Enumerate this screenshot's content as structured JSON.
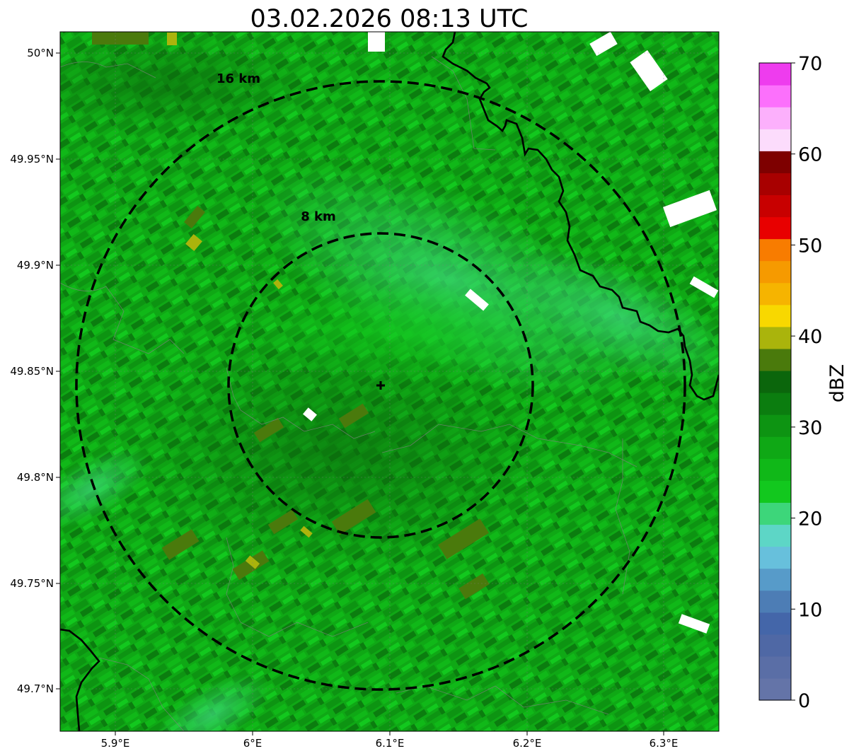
{
  "title": "03.02.2026 08:13 UTC",
  "map": {
    "lon_ticks": [
      {
        "value": 5.9,
        "label": "5.9°E"
      },
      {
        "value": 6.0,
        "label": "6°E"
      },
      {
        "value": 6.1,
        "label": "6.1°E"
      },
      {
        "value": 6.2,
        "label": "6.2°E"
      },
      {
        "value": 6.3,
        "label": "6.3°E"
      }
    ],
    "lat_ticks": [
      {
        "value": 50.0,
        "label": "50°N"
      },
      {
        "value": 49.95,
        "label": "49.95°N"
      },
      {
        "value": 49.9,
        "label": "49.9°N"
      },
      {
        "value": 49.85,
        "label": "49.85°N"
      },
      {
        "value": 49.8,
        "label": "49.8°N"
      },
      {
        "value": 49.75,
        "label": "49.75°N"
      },
      {
        "value": 49.7,
        "label": "49.7°N"
      }
    ],
    "lon_range": [
      5.86,
      6.34
    ],
    "lat_range": [
      49.68,
      50.01
    ],
    "radar_site": {
      "lon": 6.095,
      "lat": 49.843
    },
    "range_rings": [
      {
        "radius_km": 8,
        "label": "8 km"
      },
      {
        "radius_km": 16,
        "label": "16 km"
      }
    ]
  },
  "colorbar": {
    "label": "dBZ",
    "min": 0,
    "max": 70,
    "ticks": [
      {
        "value": 0,
        "label": "0"
      },
      {
        "value": 10,
        "label": "10"
      },
      {
        "value": 20,
        "label": "20"
      },
      {
        "value": 30,
        "label": "30"
      },
      {
        "value": 40,
        "label": "40"
      },
      {
        "value": 50,
        "label": "50"
      },
      {
        "value": 60,
        "label": "60"
      },
      {
        "value": 70,
        "label": "70"
      }
    ],
    "colors": [
      "#6474a8",
      "#5a6ea6",
      "#4f68a5",
      "#4466a9",
      "#4d7db5",
      "#579bc9",
      "#67c0dc",
      "#5dd6c6",
      "#3dd67a",
      "#12c81e",
      "#10b818",
      "#0fa815",
      "#0d9412",
      "#0b7d0f",
      "#0b660c",
      "#4a7a0c",
      "#aab40c",
      "#f8d800",
      "#f6b400",
      "#f69a00",
      "#f87c00",
      "#e80000",
      "#c80000",
      "#a80000",
      "#7e0000",
      "#fcdcfc",
      "#fcb0fc",
      "#fc70fc",
      "#ee3cee"
    ]
  }
}
